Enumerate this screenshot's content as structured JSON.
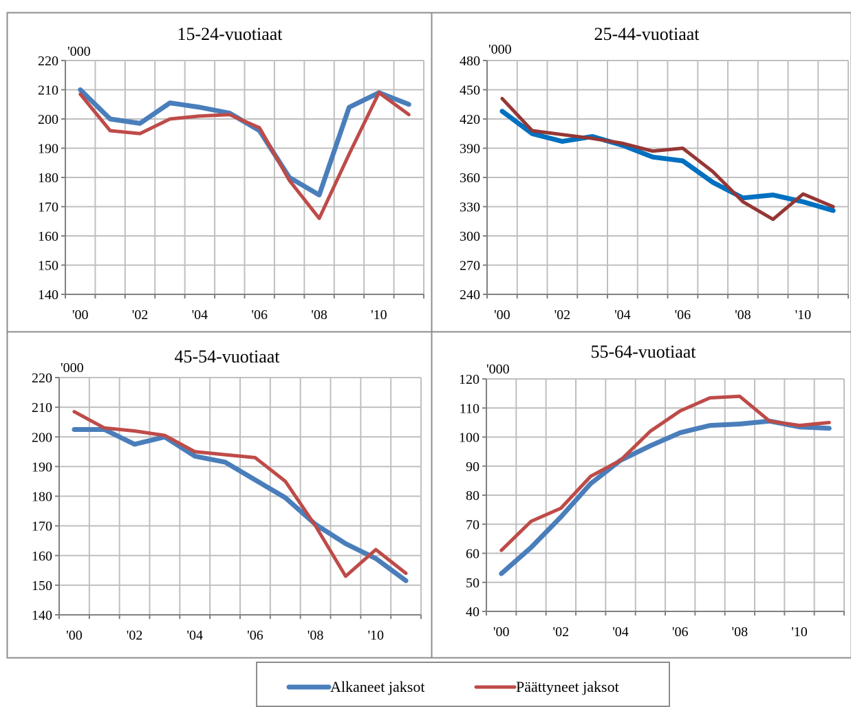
{
  "chart_data": [
    {
      "type": "line",
      "title": "15-24-vuotiaat",
      "unit_label": "'000",
      "ylim": [
        140,
        220
      ],
      "yticks": [
        140,
        150,
        160,
        170,
        180,
        190,
        200,
        210,
        220
      ],
      "x": [
        2000,
        2001,
        2002,
        2003,
        2004,
        2005,
        2006,
        2007,
        2008,
        2009,
        2010,
        2011
      ],
      "xtick_labels": [
        "'00",
        "'02",
        "'04",
        "'06",
        "'08",
        "'10"
      ],
      "grid": true,
      "series": [
        {
          "name": "Alkaneet jaksot",
          "values": [
            210,
            200,
            198.5,
            205.5,
            204,
            202,
            196,
            180,
            174,
            204,
            209,
            205
          ]
        },
        {
          "name": "Päättyneet jaksot",
          "values": [
            208.5,
            196,
            195,
            200,
            201,
            201.5,
            197,
            179,
            166,
            188,
            209,
            201.5
          ]
        }
      ]
    },
    {
      "type": "line",
      "title": "25-44-vuotiaat",
      "unit_label": "'000",
      "ylim": [
        240,
        480
      ],
      "yticks": [
        240,
        270,
        300,
        330,
        360,
        390,
        420,
        450,
        480
      ],
      "x": [
        2000,
        2001,
        2002,
        2003,
        2004,
        2005,
        2006,
        2007,
        2008,
        2009,
        2010,
        2011
      ],
      "xtick_labels": [
        "'00",
        "'02",
        "'04",
        "'06",
        "'08",
        "'10"
      ],
      "grid": true,
      "series": [
        {
          "name": "Alkaneet jaksot",
          "values": [
            428,
            405,
            397,
            402,
            393,
            381,
            377,
            355,
            339,
            342,
            335,
            326
          ]
        },
        {
          "name": "Päättyneet jaksot",
          "values": [
            441,
            408,
            404,
            400,
            395,
            387,
            390,
            366,
            335,
            317,
            343,
            330
          ]
        }
      ]
    },
    {
      "type": "line",
      "title": "45-54-vuotiaat",
      "unit_label": "'000",
      "ylim": [
        140,
        220
      ],
      "yticks": [
        140,
        150,
        160,
        170,
        180,
        190,
        200,
        210,
        220
      ],
      "x": [
        2000,
        2001,
        2002,
        2003,
        2004,
        2005,
        2006,
        2007,
        2008,
        2009,
        2010,
        2011
      ],
      "xtick_labels": [
        "'00",
        "'02",
        "'04",
        "'06",
        "'08",
        "'10"
      ],
      "grid": true,
      "series": [
        {
          "name": "Alkaneet jaksot",
          "values": [
            202.5,
            202.5,
            197.5,
            200,
            193.5,
            191.5,
            185.5,
            179.5,
            170.5,
            164,
            159,
            151.5
          ]
        },
        {
          "name": "Päättyneet jaksot",
          "values": [
            208.5,
            203,
            202,
            200.5,
            195,
            194,
            193,
            185,
            170,
            153,
            162,
            154
          ]
        }
      ]
    },
    {
      "type": "line",
      "title": "55-64-vuotiaat",
      "unit_label": "'000",
      "ylim": [
        40,
        120
      ],
      "yticks": [
        40,
        50,
        60,
        70,
        80,
        90,
        100,
        110,
        120
      ],
      "x": [
        2000,
        2001,
        2002,
        2003,
        2004,
        2005,
        2006,
        2007,
        2008,
        2009,
        2010,
        2011
      ],
      "xtick_labels": [
        "'00",
        "'02",
        "'04",
        "'06",
        "'08",
        "'10"
      ],
      "grid": true,
      "series": [
        {
          "name": "Alkaneet jaksot",
          "values": [
            53,
            62,
            72.5,
            84,
            92,
            97,
            101.5,
            104,
            104.5,
            105.5,
            103.5,
            103
          ]
        },
        {
          "name": "Päättyneet jaksot",
          "values": [
            61,
            71,
            75.5,
            86.5,
            92,
            102,
            109,
            113.5,
            114,
            105.5,
            104,
            105
          ]
        }
      ]
    }
  ],
  "legend": {
    "placement": "bottom",
    "items": [
      {
        "label": "Alkaneet jaksot",
        "color": "#4a7ebb"
      },
      {
        "label": "Päättyneet jaksot",
        "color": "#be4b48"
      }
    ]
  },
  "colors": {
    "series": [
      "#4a7ebb",
      "#be4b48"
    ],
    "series_panel2_blue": "#0070c0",
    "series_panel2_red": "#953735",
    "grid": "#bfbfbf",
    "axis": "#808080",
    "frame": "#8c8c8c"
  }
}
